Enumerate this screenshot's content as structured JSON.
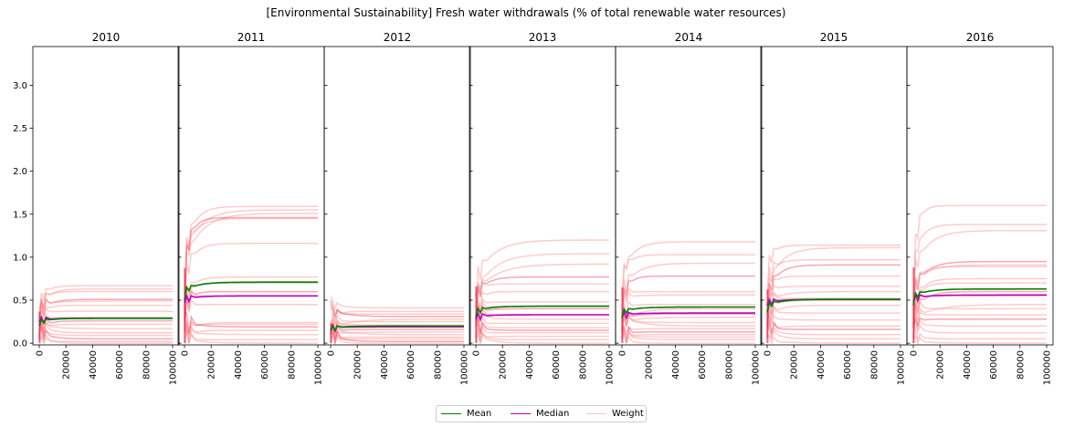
{
  "title": "[Environmental Sustainability] Fresh water withdrawals (% of total renewable water resources)",
  "legend": {
    "mean_label": "Mean",
    "median_label": "Median",
    "weight_label": "Weight"
  },
  "colors": {
    "mean": "#008000",
    "median": "#bf00bf",
    "weight": "#ff9999",
    "weight_dark": "#e8002a"
  },
  "chart_data": {
    "type": "line",
    "title": "[Environmental Sustainability] Fresh water withdrawals (% of total renewable water resources)",
    "xlim": [
      0,
      100000
    ],
    "ylim": [
      -0.02,
      3.45
    ],
    "xticks": [
      0,
      20000,
      40000,
      60000,
      80000,
      100000
    ],
    "yticks": [
      0.0,
      0.5,
      1.0,
      1.5,
      2.0,
      2.5,
      3.0
    ],
    "ytick_labels": [
      "0.0",
      "0.5",
      "1.0",
      "1.5",
      "2.0",
      "2.5",
      "3.0"
    ],
    "legend_position": "bottom-center",
    "panels": [
      {
        "title": "2010",
        "mean": 0.29,
        "median": 0.29,
        "weights": [
          0.67,
          0.63,
          0.6,
          0.51,
          0.49,
          0.44,
          0.37,
          0.3,
          0.26,
          0.22,
          0.17,
          0.12,
          0.09,
          0.05,
          0.02,
          0.0
        ]
      },
      {
        "title": "2011",
        "mean": 0.71,
        "median": 0.55,
        "weights": [
          1.59,
          1.55,
          1.51,
          1.46,
          1.45,
          1.16,
          0.77,
          0.7,
          0.6,
          0.55,
          0.45,
          0.24,
          0.22,
          0.19,
          0.15,
          0.1,
          0.04,
          0.0
        ]
      },
      {
        "title": "2012",
        "mean": 0.2,
        "median": 0.19,
        "weights": [
          0.41,
          0.37,
          0.34,
          0.31,
          0.28,
          0.25,
          0.21,
          0.19,
          0.16,
          0.13,
          0.1,
          0.07,
          0.05,
          0.02,
          0.0
        ]
      },
      {
        "title": "2013",
        "mean": 0.43,
        "median": 0.33,
        "weights": [
          1.2,
          1.04,
          0.92,
          0.77,
          0.69,
          0.6,
          0.48,
          0.43,
          0.4,
          0.33,
          0.28,
          0.23,
          0.18,
          0.15,
          0.12,
          0.08,
          0.04,
          0.0
        ]
      },
      {
        "title": "2014",
        "mean": 0.42,
        "median": 0.35,
        "weights": [
          1.18,
          1.03,
          0.93,
          0.78,
          0.6,
          0.56,
          0.45,
          0.4,
          0.34,
          0.3,
          0.24,
          0.2,
          0.17,
          0.13,
          0.1,
          0.07,
          0.04,
          0.0
        ]
      },
      {
        "title": "2015",
        "mean": 0.51,
        "median": 0.51,
        "weights": [
          1.14,
          1.11,
          0.97,
          0.91,
          0.78,
          0.66,
          0.6,
          0.52,
          0.5,
          0.44,
          0.35,
          0.27,
          0.2,
          0.16,
          0.1,
          0.05,
          0.0
        ]
      },
      {
        "title": "2016",
        "mean": 0.63,
        "median": 0.56,
        "weights": [
          1.6,
          1.38,
          1.31,
          0.95,
          0.91,
          0.89,
          0.75,
          0.7,
          0.6,
          0.55,
          0.45,
          0.4,
          0.33,
          0.28,
          0.2,
          0.12,
          0.05,
          0.0
        ]
      }
    ]
  }
}
